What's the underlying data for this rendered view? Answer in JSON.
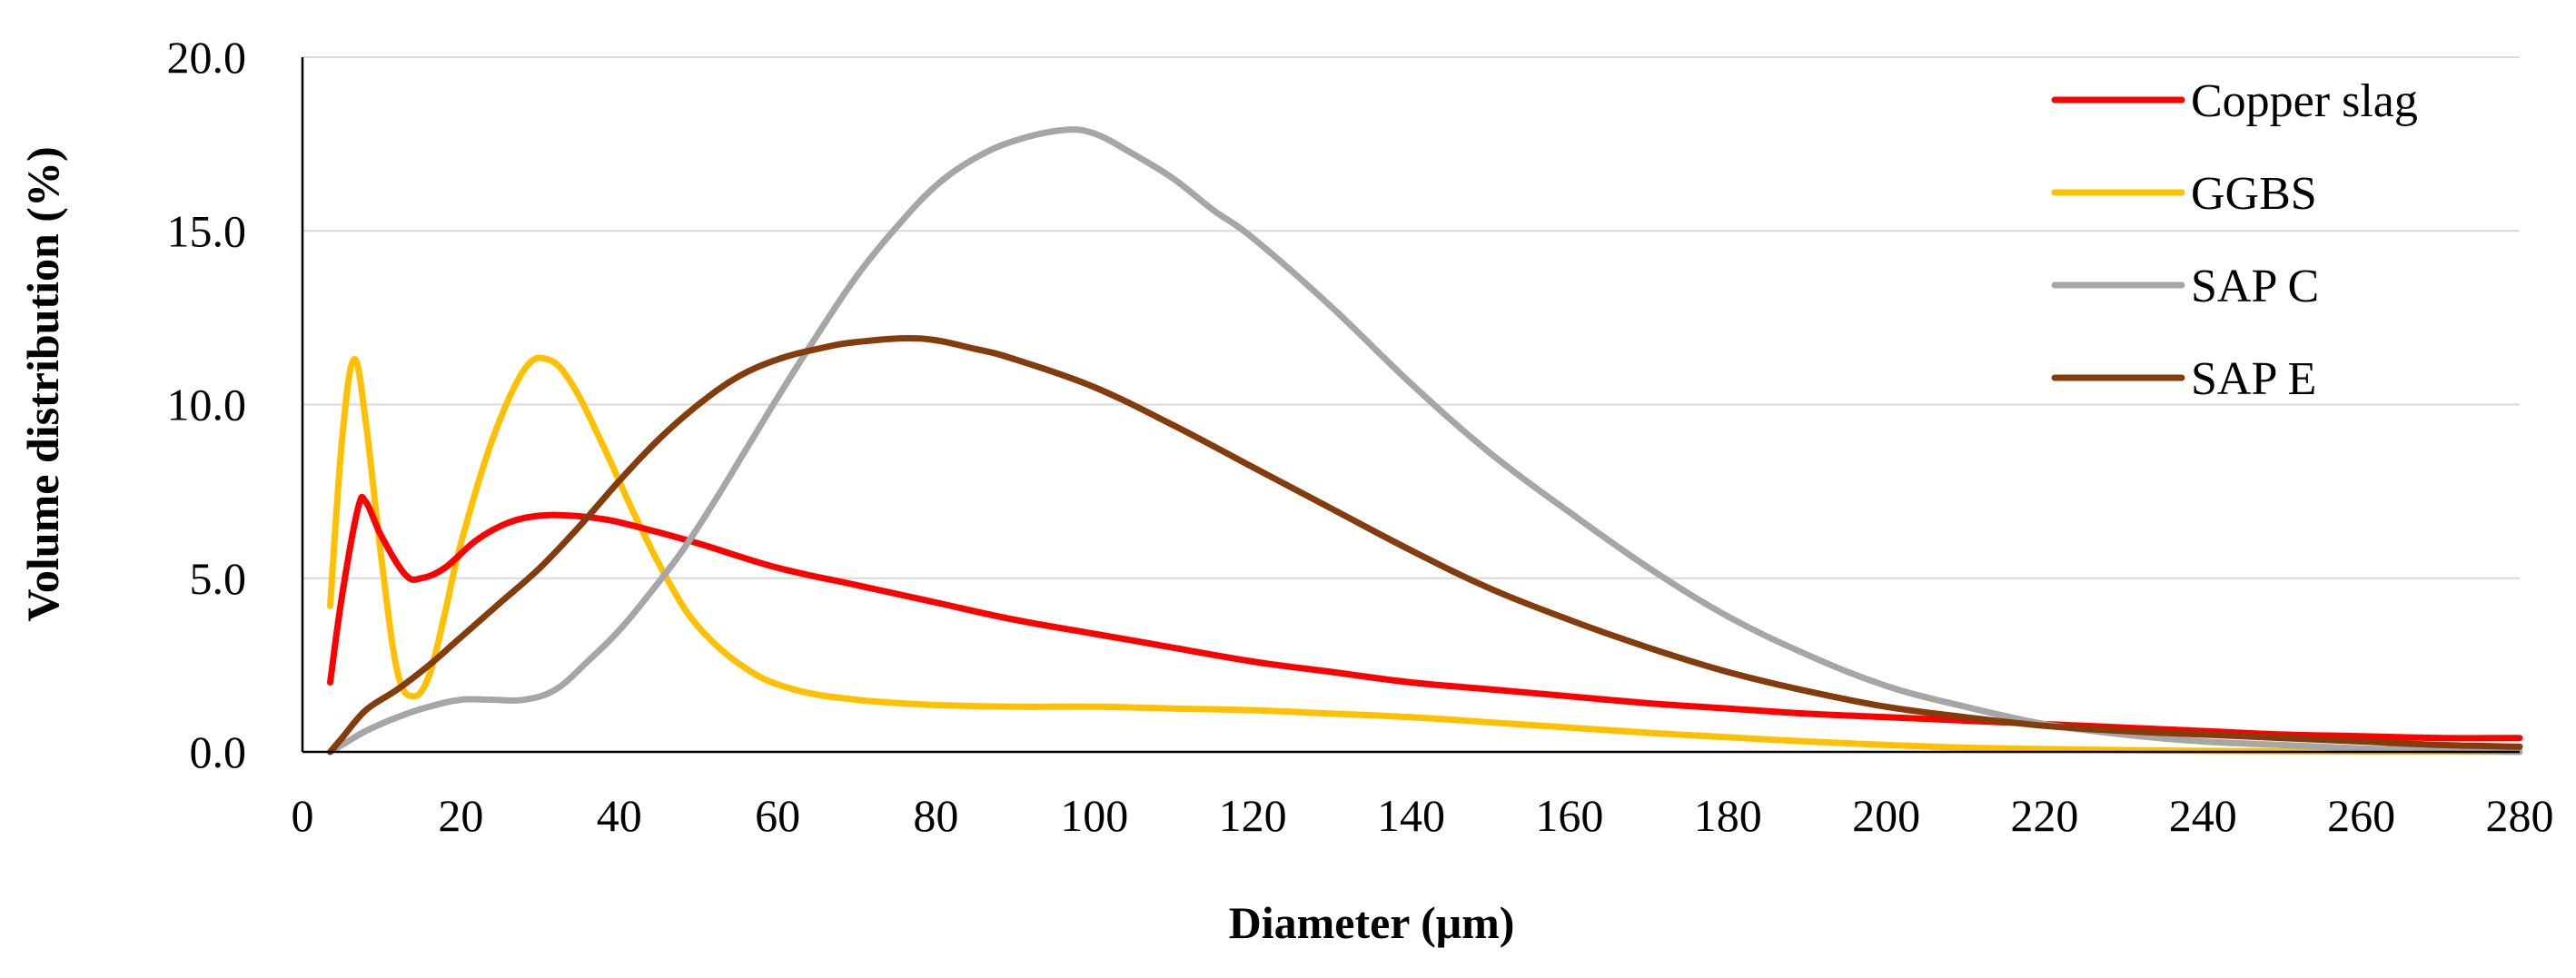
{
  "chart_data": {
    "type": "line",
    "title": "",
    "xlabel": "Diameter (μm)",
    "ylabel": "Volume distribution (%)",
    "xlim": [
      0,
      280
    ],
    "ylim": [
      0,
      20
    ],
    "x_ticks": [
      0,
      20,
      40,
      60,
      80,
      100,
      120,
      140,
      160,
      180,
      200,
      220,
      240,
      260,
      280
    ],
    "x_tick_labels": [
      "0",
      "20",
      "40",
      "60",
      "80",
      "100",
      "120",
      "140",
      "160",
      "180",
      "200",
      "220",
      "240",
      "260",
      "280"
    ],
    "y_ticks": [
      0,
      5,
      10,
      15,
      20
    ],
    "y_tick_labels": [
      "0.0",
      "5.0",
      "10.0",
      "15.0",
      "20.0"
    ],
    "grid": "horizontal",
    "legend_position": "top-right",
    "series": [
      {
        "name": "Copper slag",
        "color": "#ff0000",
        "x": [
          3.5,
          5,
          7,
          8,
          10,
          13,
          15,
          18,
          22,
          26,
          30,
          34,
          38,
          42,
          50,
          60,
          70,
          80,
          90,
          100,
          110,
          120,
          130,
          140,
          150,
          160,
          170,
          180,
          190,
          200,
          210,
          220,
          230,
          240,
          250,
          260,
          270,
          280
        ],
        "values": [
          2.0,
          4.5,
          7.0,
          7.2,
          6.2,
          5.1,
          5.0,
          5.3,
          6.1,
          6.6,
          6.8,
          6.8,
          6.7,
          6.5,
          6.0,
          5.3,
          4.8,
          4.3,
          3.8,
          3.4,
          3.0,
          2.6,
          2.3,
          2.0,
          1.8,
          1.6,
          1.4,
          1.25,
          1.1,
          1.0,
          0.9,
          0.8,
          0.7,
          0.6,
          0.5,
          0.45,
          0.4,
          0.4
        ]
      },
      {
        "name": "GGBS",
        "color": "#ffc000",
        "x": [
          3.5,
          5,
          6.5,
          8,
          10,
          12,
          14,
          16,
          18,
          20,
          24,
          28,
          31,
          34,
          38,
          42,
          46,
          50,
          56,
          62,
          70,
          80,
          90,
          100,
          110,
          120,
          130,
          140,
          150,
          160,
          170,
          180,
          190,
          200,
          210,
          220,
          230,
          240,
          250,
          260,
          270,
          280
        ],
        "values": [
          4.2,
          9.0,
          11.3,
          9.5,
          5.5,
          2.3,
          1.6,
          2.2,
          4.0,
          6.0,
          9.0,
          11.0,
          11.3,
          10.6,
          8.8,
          6.8,
          5.0,
          3.6,
          2.4,
          1.8,
          1.5,
          1.35,
          1.3,
          1.3,
          1.25,
          1.2,
          1.1,
          1.0,
          0.85,
          0.7,
          0.55,
          0.42,
          0.3,
          0.2,
          0.12,
          0.08,
          0.05,
          0.03,
          0.02,
          0.01,
          0.01,
          0.0
        ]
      },
      {
        "name": "SAP C",
        "color": "#a6a6a6",
        "x": [
          3.5,
          5,
          8,
          12,
          16,
          20,
          24,
          28,
          32,
          36,
          40,
          44,
          48,
          52,
          56,
          60,
          65,
          70,
          75,
          80,
          85,
          90,
          96,
          100,
          105,
          110,
          115,
          120,
          130,
          140,
          150,
          160,
          170,
          180,
          190,
          200,
          210,
          220,
          230,
          240,
          250,
          260,
          270,
          280
        ],
        "values": [
          0.0,
          0.2,
          0.6,
          1.0,
          1.3,
          1.5,
          1.5,
          1.5,
          1.8,
          2.6,
          3.5,
          4.6,
          5.8,
          7.2,
          8.7,
          10.2,
          12.0,
          13.7,
          15.1,
          16.3,
          17.1,
          17.6,
          17.9,
          17.8,
          17.2,
          16.5,
          15.6,
          14.8,
          12.8,
          10.6,
          8.6,
          6.9,
          5.3,
          3.9,
          2.8,
          1.9,
          1.3,
          0.8,
          0.5,
          0.3,
          0.2,
          0.1,
          0.05,
          0.0
        ]
      },
      {
        "name": "SAP E",
        "color": "#843c0c",
        "x": [
          3.5,
          5,
          8,
          12,
          16,
          20,
          25,
          30,
          35,
          40,
          45,
          50,
          55,
          60,
          65,
          70,
          78,
          85,
          90,
          100,
          110,
          120,
          130,
          140,
          150,
          160,
          170,
          180,
          190,
          200,
          210,
          220,
          230,
          240,
          250,
          260,
          270,
          280
        ],
        "values": [
          0.0,
          0.4,
          1.2,
          1.8,
          2.5,
          3.3,
          4.3,
          5.3,
          6.5,
          7.8,
          9.0,
          10.0,
          10.8,
          11.3,
          11.6,
          11.8,
          11.9,
          11.6,
          11.3,
          10.5,
          9.4,
          8.2,
          7.0,
          5.8,
          4.7,
          3.8,
          3.0,
          2.3,
          1.75,
          1.3,
          1.0,
          0.75,
          0.6,
          0.5,
          0.4,
          0.3,
          0.2,
          0.15
        ]
      }
    ]
  }
}
